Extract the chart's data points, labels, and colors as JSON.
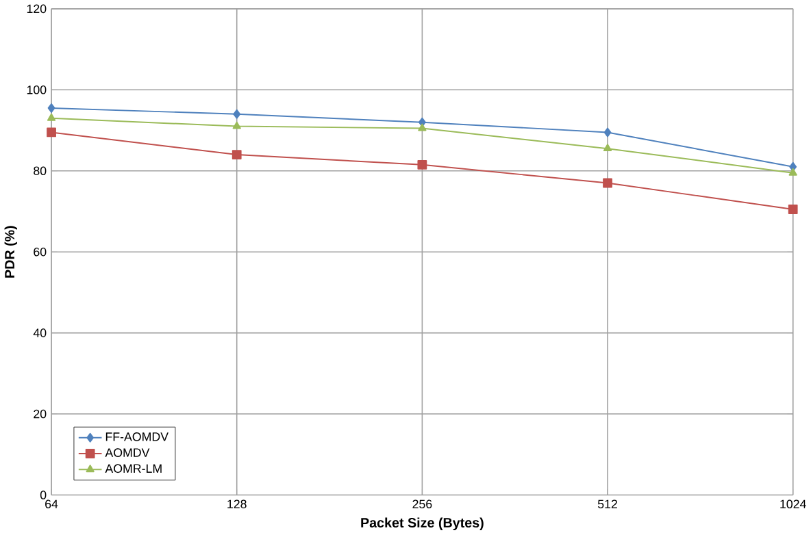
{
  "chart_data": {
    "type": "line",
    "xlabel": "Packet Size (Bytes)",
    "ylabel": "PDR (%)",
    "categories": [
      "64",
      "128",
      "256",
      "512",
      "1024"
    ],
    "series": [
      {
        "name": "FF-AOMDV",
        "color": "#4f81bd",
        "marker": "diamond",
        "values": [
          95.5,
          94,
          92,
          89.5,
          81
        ]
      },
      {
        "name": "AOMDV",
        "color": "#c0504d",
        "marker": "square",
        "values": [
          89.5,
          84,
          81.5,
          77,
          70.5
        ]
      },
      {
        "name": "AOMR-LM",
        "color": "#9bbb59",
        "marker": "triangle",
        "values": [
          93,
          91,
          90.5,
          85.5,
          79.5
        ]
      }
    ],
    "ylim": [
      0,
      120
    ],
    "yticks": [
      0,
      20,
      40,
      60,
      80,
      100,
      120
    ],
    "grid": true,
    "legend": "bottom left"
  }
}
